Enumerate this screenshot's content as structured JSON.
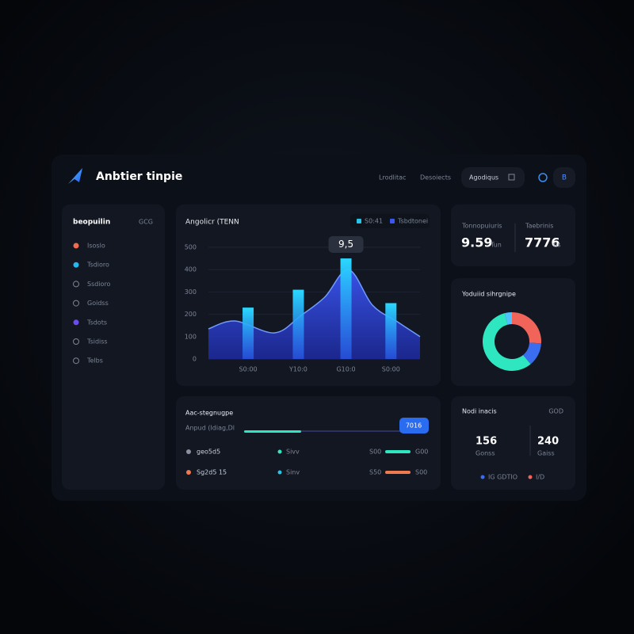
{
  "header": {
    "title": "Anbtier tinpie",
    "nav": [
      "Lrodlitac",
      "Desoiects"
    ],
    "button": "Agodiqus",
    "avatar": "B"
  },
  "sidebar": {
    "title": "beopuilin",
    "badge": "GCG",
    "items": [
      "Isoslo",
      "Tsdioro",
      "Ssdioro",
      "Goidss",
      "Tsdots",
      "Tsidiss",
      "Telbs"
    ]
  },
  "chart_data": {
    "type": "bar",
    "title": "Angolicr (TENN",
    "annotation": "9,5",
    "series": [
      {
        "name": "S0:41",
        "type": "bar",
        "color": "#27c4e8",
        "x": [
          1.5,
          3.4,
          5.2,
          6.9
        ],
        "values": [
          230,
          310,
          450,
          250
        ]
      },
      {
        "name": "Tsbdtonei",
        "type": "area",
        "color": "#3a55f0",
        "x": [
          0,
          1,
          2.5,
          3.5,
          4.4,
          5.3,
          6.2,
          7.1,
          8
        ],
        "values": [
          135,
          170,
          117,
          195,
          277,
          400,
          241,
          170,
          100
        ]
      }
    ],
    "xlim": [
      0,
      8
    ],
    "xticks": [
      {
        "value": 1.5,
        "label": "S0:00"
      },
      {
        "value": 3.4,
        "label": "Y10:0"
      },
      {
        "value": 5.2,
        "label": "G10:0"
      },
      {
        "value": 6.9,
        "label": "S0:00"
      }
    ],
    "ylim": [
      0,
      500
    ],
    "yticks": [
      0,
      100,
      200,
      300,
      400,
      500
    ],
    "grid": true
  },
  "stats": [
    {
      "label": "Tonnopuiuris",
      "value": "9.59",
      "unit": "Tun"
    },
    {
      "label": "Taebrinis",
      "value": "7776",
      "unit": "tis"
    }
  ],
  "donut": {
    "type": "pie",
    "title": "Yoduiid sihrgnipe",
    "values": [
      26,
      13,
      57,
      4
    ],
    "colors": [
      "#f0645a",
      "#3a6df0",
      "#2ee6c0",
      "#4fc3ff"
    ]
  },
  "tasks": {
    "title": "Aac-stegnugpe",
    "subtitle": "Anpud (Idiag,Dl",
    "button": "7016",
    "rows": [
      [
        "geo5d5",
        "Sivv",
        "S00",
        "G00"
      ],
      [
        "Sg2d5 15",
        "Sinv",
        "S50",
        "S00"
      ]
    ]
  },
  "summary": {
    "title": "Nodi inacis",
    "badge": "GOD",
    "metrics": [
      {
        "value": "156",
        "label": "Gonss"
      },
      {
        "value": "240",
        "label": "Gaiss"
      }
    ],
    "legend": [
      "IG GDTIO",
      "I/D"
    ]
  }
}
